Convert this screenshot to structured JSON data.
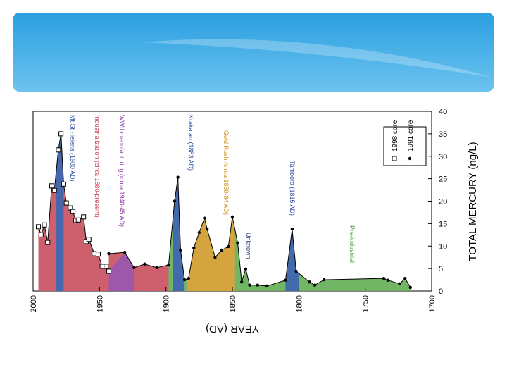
{
  "chart_data": {
    "type": "area",
    "xlabel": "YEAR (AD)",
    "ylabel": "TOTAL MERCURY (ng/L)",
    "xlim": [
      2000,
      1700
    ],
    "xticks": [
      2000,
      1950,
      1900,
      1850,
      1800,
      1750,
      1700
    ],
    "ylim": [
      0,
      40
    ],
    "yticks": [
      0,
      5,
      10,
      15,
      20,
      25,
      30,
      35,
      40
    ],
    "legend": "top-right",
    "series": [
      {
        "name": "1998 core",
        "marker": "square",
        "color": "#000000",
        "x": [
          1996,
          1994,
          1991.5,
          1989,
          1986,
          1984,
          1981,
          1979,
          1977,
          1975,
          1972,
          1970,
          1968,
          1966,
          1962,
          1960,
          1958,
          1954,
          1951,
          1948,
          1945,
          1943
        ],
        "values": [
          14.3,
          12.5,
          14.7,
          10.8,
          23.4,
          22.4,
          31.4,
          35,
          23.8,
          19.6,
          18.5,
          17.7,
          15.7,
          15.8,
          16.5,
          11,
          11.5,
          8.3,
          8.2,
          5.5,
          5.5,
          4.4
        ]
      },
      {
        "name": "1991 core",
        "marker": "dot",
        "color": "#000000",
        "x": [
          1943,
          1931,
          1924,
          1916,
          1907,
          1898,
          1893.5,
          1891,
          1889,
          1886,
          1883,
          1879,
          1875,
          1871,
          1869,
          1863,
          1858,
          1853,
          1850,
          1846,
          1843,
          1840,
          1837,
          1831,
          1824,
          1810,
          1805,
          1802,
          1792,
          1788,
          1781,
          1736,
          1733,
          1724,
          1720,
          1716
        ],
        "values": [
          8.3,
          8.6,
          5.2,
          6,
          5.2,
          5.8,
          20,
          25.3,
          9.1,
          2.5,
          2.8,
          9.6,
          13,
          16.2,
          13.8,
          7.5,
          9.1,
          9.9,
          16.5,
          10.7,
          2,
          4.9,
          1.3,
          1.3,
          1.1,
          2.4,
          13.8,
          4.4,
          2,
          1.3,
          2.5,
          2.8,
          2.4,
          1.6,
          2.8,
          0.8
        ]
      }
    ],
    "annotations": [
      {
        "text": "Pre-industrial",
        "color": "#4a9a3a",
        "fill": "#6ab15c",
        "from": 1996,
        "to": 1716
      },
      {
        "text": "Industrialization (circa 1880-present)",
        "color": "#c8425a",
        "fill": "#d35c6e",
        "from": 1996,
        "to": 1898
      },
      {
        "text": "WWII manufacturing (circa 1940-45 AD)",
        "color": "#8a3f9e",
        "fill": "#9a57b0",
        "from": 1943,
        "to": 1924
      },
      {
        "text": "Mt St Helens (1980 AD)",
        "color": "#2f4f9e",
        "fill": "#3f66b0",
        "from": 1983,
        "to": 1977
      },
      {
        "text": "Krakatau (1883 AD)",
        "color": "#2f4f9e",
        "fill": "#3f66b0",
        "from": 1895,
        "to": 1886
      },
      {
        "text": "Gold Rush (circa 1850-84 AD)",
        "color": "#c8901e",
        "fill": "#d9a43c",
        "from": 1884,
        "to": 1848
      },
      {
        "text": "Unknown",
        "color": "#2f3f7e"
      },
      {
        "text": "Tambora (1815 AD)",
        "color": "#2f4f9e",
        "fill": "#3f66b0",
        "from": 1810,
        "to": 1800
      }
    ]
  }
}
